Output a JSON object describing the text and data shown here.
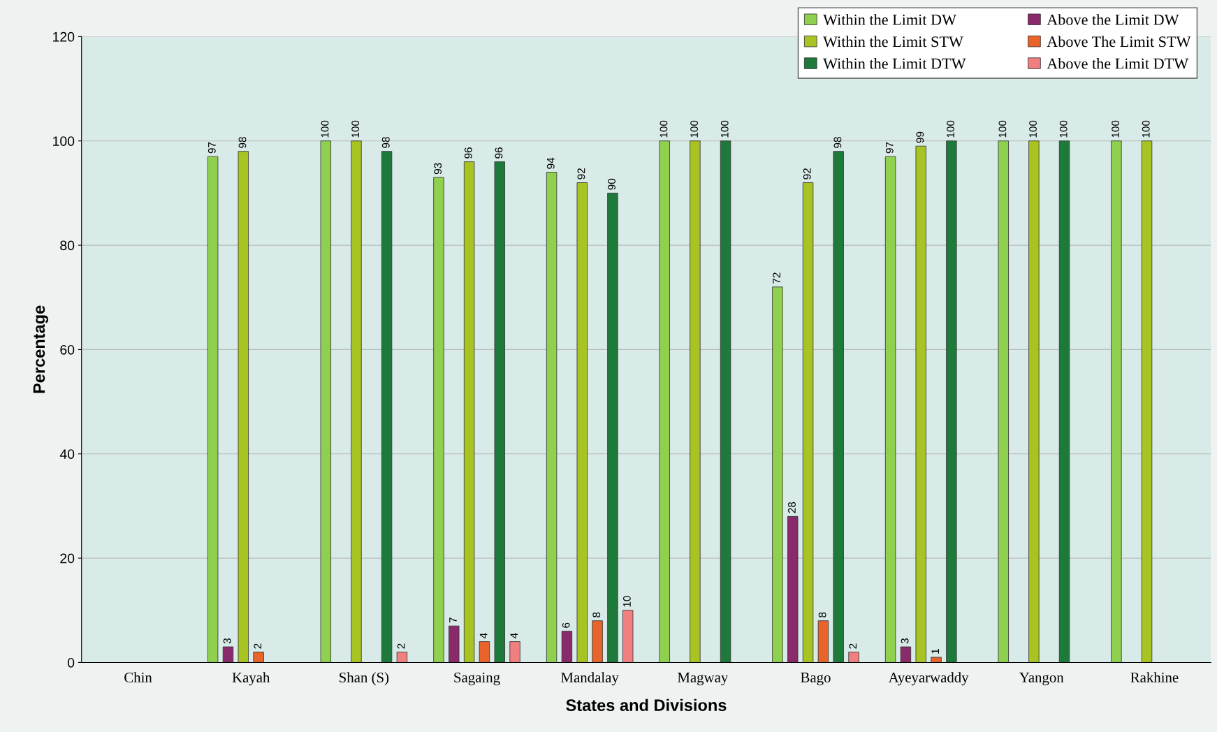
{
  "chart_data": {
    "type": "bar",
    "xlabel": "States and Divisions",
    "ylabel": "Percentage",
    "categories": [
      "Chin",
      "Kayah",
      "Shan (S)",
      "Sagaing",
      "Mandalay",
      "Magway",
      "Bago",
      "Ayeyarwaddy",
      "Yangon",
      "Rakhine"
    ],
    "series": [
      {
        "name": "Within the Limit DW",
        "color": "#8fd14f",
        "values": [
          null,
          97,
          100,
          93,
          94,
          100,
          72,
          97,
          100,
          100
        ]
      },
      {
        "name": "Above the Limit DW",
        "color": "#8b2a6b",
        "values": [
          null,
          3,
          null,
          7,
          6,
          null,
          28,
          3,
          null,
          null
        ]
      },
      {
        "name": "Within the Limit STW",
        "color": "#a8c423",
        "values": [
          null,
          98,
          100,
          96,
          92,
          100,
          92,
          99,
          100,
          100
        ]
      },
      {
        "name": "Above The Limit STW",
        "color": "#e8642a",
        "values": [
          null,
          2,
          null,
          4,
          8,
          null,
          8,
          1,
          null,
          null
        ]
      },
      {
        "name": "Within the Limit DTW",
        "color": "#1e7a3a",
        "values": [
          null,
          null,
          98,
          96,
          90,
          100,
          98,
          100,
          100,
          null
        ]
      },
      {
        "name": "Above the Limit DTW",
        "color": "#f08080",
        "values": [
          null,
          null,
          2,
          4,
          10,
          null,
          2,
          null,
          null,
          null
        ]
      }
    ],
    "ylim": [
      0,
      120
    ],
    "yticks": [
      0,
      20,
      40,
      60,
      80,
      100,
      120
    ],
    "grid": "y",
    "legend": "top right",
    "data_labels": true
  }
}
